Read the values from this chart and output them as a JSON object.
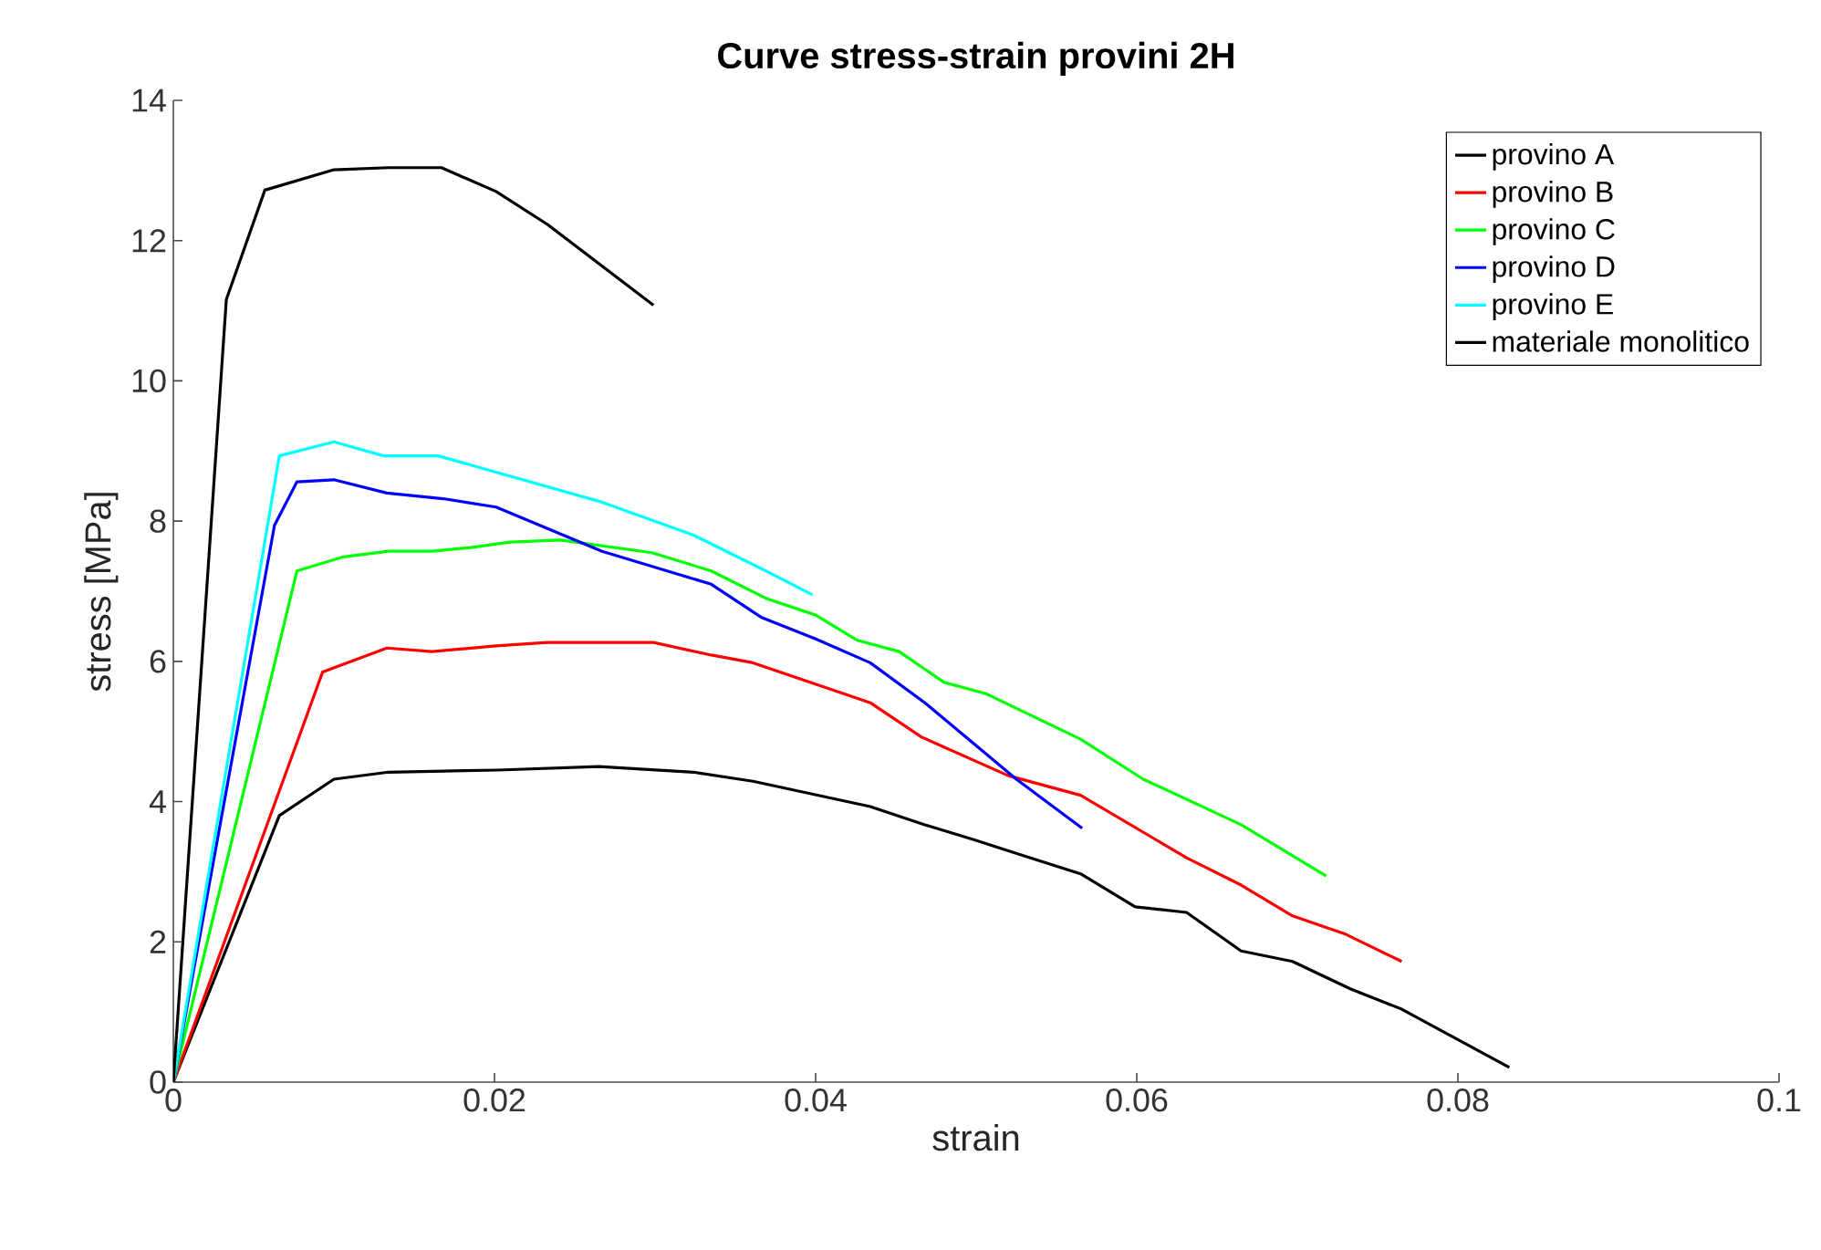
{
  "chart_data": {
    "type": "line",
    "title": "Curve stress-strain provini 2H",
    "xlabel": "strain",
    "ylabel": "stress [MPa]",
    "xlim": [
      0,
      0.1
    ],
    "ylim": [
      0,
      14
    ],
    "xticks": [
      0,
      0.02,
      0.04,
      0.06,
      0.08,
      0.1
    ],
    "yticks": [
      0,
      2,
      4,
      6,
      8,
      10,
      12,
      14
    ],
    "legend": "top right",
    "grid": false,
    "marker": "none",
    "line_style": "solid",
    "series": [
      {
        "name": "provino A",
        "color": "#000000",
        "x": [
          0,
          0.0066,
          0.01,
          0.0134,
          0.0202,
          0.0265,
          0.0324,
          0.0361,
          0.0434,
          0.0468,
          0.0498,
          0.0528,
          0.0565,
          0.0599,
          0.0631,
          0.0665,
          0.0697,
          0.0733,
          0.0765,
          0.0832
        ],
        "values": [
          0,
          3.8,
          4.32,
          4.42,
          4.45,
          4.5,
          4.42,
          4.29,
          3.93,
          3.67,
          3.46,
          3.24,
          2.97,
          2.5,
          2.42,
          1.87,
          1.72,
          1.33,
          1.04,
          0.21
        ]
      },
      {
        "name": "provino B",
        "color": "#ff0000",
        "x": [
          0,
          0.0093,
          0.0133,
          0.0161,
          0.0201,
          0.0233,
          0.0299,
          0.0335,
          0.0361,
          0.0434,
          0.0466,
          0.052,
          0.0565,
          0.0631,
          0.0665,
          0.0697,
          0.073,
          0.0765
        ],
        "values": [
          0,
          5.85,
          6.19,
          6.14,
          6.22,
          6.27,
          6.27,
          6.09,
          5.98,
          5.41,
          4.92,
          4.37,
          4.09,
          3.2,
          2.81,
          2.37,
          2.11,
          1.72
        ]
      },
      {
        "name": "provino C",
        "color": "#00ff00",
        "x": [
          0,
          0.0077,
          0.0106,
          0.0134,
          0.0161,
          0.0184,
          0.021,
          0.0241,
          0.0298,
          0.0335,
          0.0369,
          0.04,
          0.0426,
          0.0452,
          0.048,
          0.0506,
          0.0565,
          0.0604,
          0.0665,
          0.0718
        ],
        "values": [
          0,
          7.29,
          7.49,
          7.57,
          7.57,
          7.62,
          7.7,
          7.73,
          7.55,
          7.29,
          6.9,
          6.66,
          6.3,
          6.14,
          5.7,
          5.54,
          4.89,
          4.32,
          3.67,
          2.94
        ]
      },
      {
        "name": "provino D",
        "color": "#0000ff",
        "x": [
          0,
          0.0063,
          0.0077,
          0.01,
          0.0133,
          0.0168,
          0.0201,
          0.0267,
          0.0335,
          0.0366,
          0.04,
          0.0434,
          0.0468,
          0.0525,
          0.0566
        ],
        "values": [
          0,
          7.94,
          8.56,
          8.59,
          8.4,
          8.32,
          8.2,
          7.57,
          7.1,
          6.63,
          6.32,
          5.98,
          5.41,
          4.32,
          3.62
        ]
      },
      {
        "name": "provino E",
        "color": "#00ffff",
        "x": [
          0,
          0.0066,
          0.01,
          0.0131,
          0.0165,
          0.0267,
          0.0324,
          0.0369,
          0.0398
        ],
        "values": [
          0,
          8.93,
          9.13,
          8.93,
          8.93,
          8.27,
          7.8,
          7.29,
          6.95
        ]
      },
      {
        "name": "materiale monolitico",
        "color": "#000000",
        "x": [
          0,
          0.0033,
          0.0057,
          0.01,
          0.0134,
          0.0167,
          0.0201,
          0.0233,
          0.0299
        ],
        "values": [
          0,
          11.16,
          12.72,
          13.01,
          13.04,
          13.04,
          12.7,
          12.23,
          11.08
        ]
      }
    ]
  }
}
